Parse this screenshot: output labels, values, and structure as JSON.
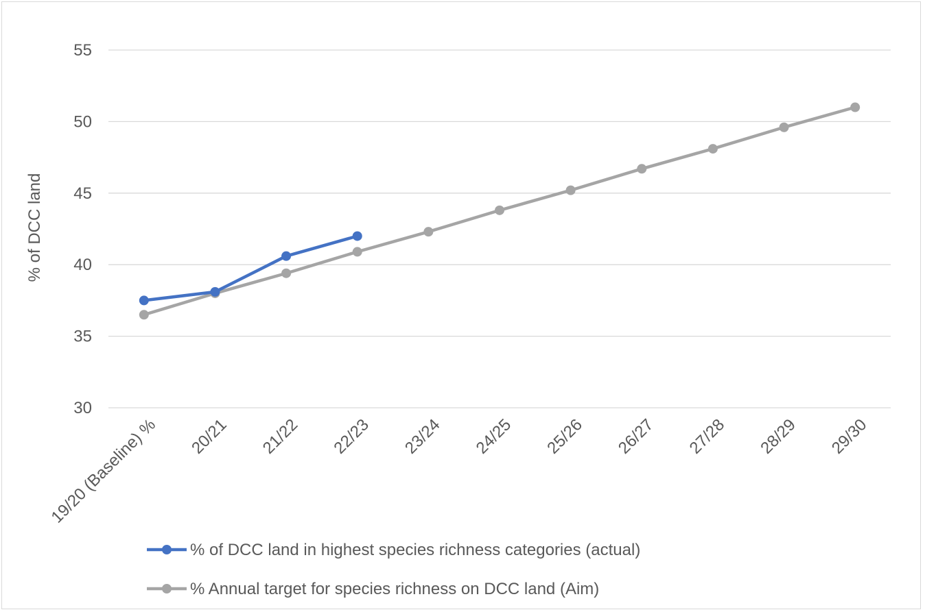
{
  "chart_data": {
    "type": "line",
    "title": "",
    "xlabel": "",
    "ylabel": "% of DCC land",
    "categories": [
      "19/20 (Baseline) %",
      "20/21",
      "21/22",
      "22/23",
      "23/24",
      "24/25",
      "25/26",
      "26/27",
      "27/28",
      "28/29",
      "29/30"
    ],
    "ylim": [
      30,
      55
    ],
    "yticks": [
      30,
      35,
      40,
      45,
      50,
      55
    ],
    "grid": "horizontal",
    "legend_position": "bottom",
    "series": [
      {
        "name": "% of DCC land in highest species richness categories (actual)",
        "color": "#4472c4",
        "values": [
          37.5,
          38.1,
          40.6,
          42.0,
          null,
          null,
          null,
          null,
          null,
          null,
          null
        ]
      },
      {
        "name": "% Annual target for species richness on DCC land (Aim)",
        "color": "#a5a5a5",
        "values": [
          36.5,
          38.0,
          39.4,
          40.9,
          42.3,
          43.8,
          45.2,
          46.7,
          48.1,
          49.6,
          51.0
        ]
      }
    ]
  }
}
